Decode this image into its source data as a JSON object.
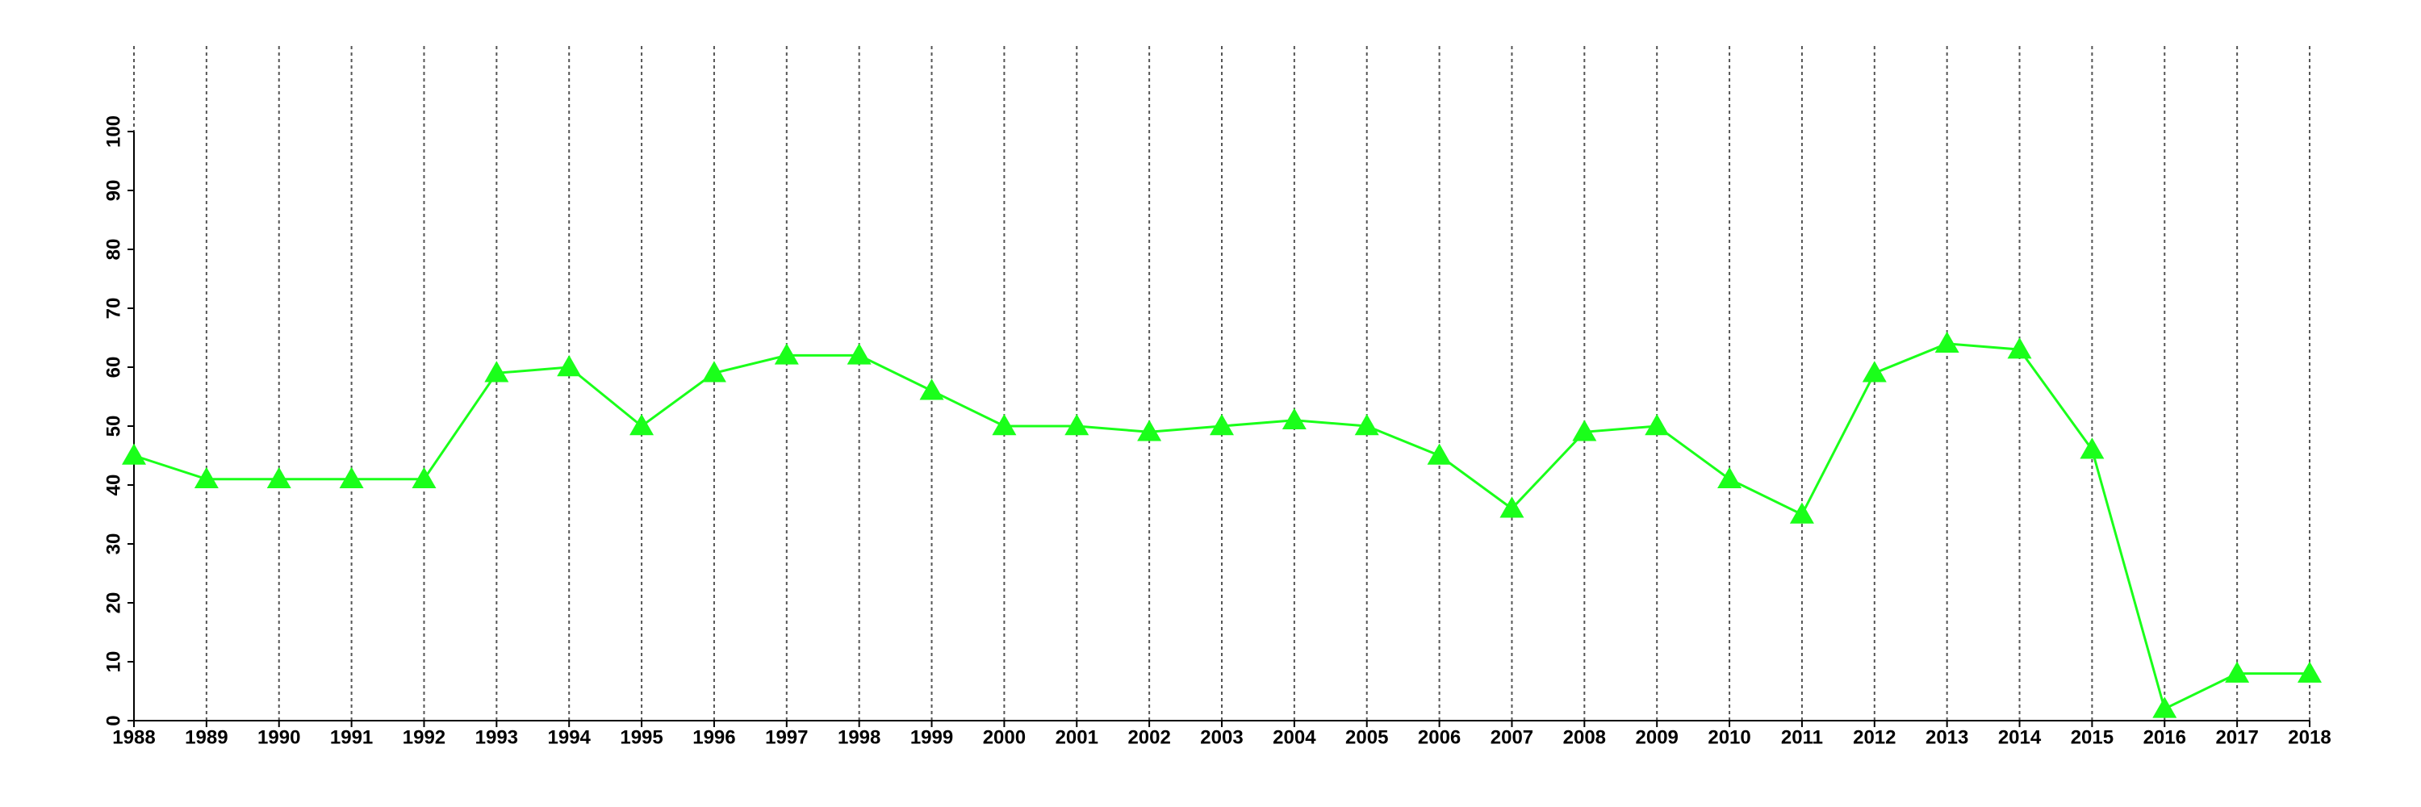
{
  "chart_data": {
    "type": "line",
    "x": [
      1988,
      1989,
      1990,
      1991,
      1992,
      1993,
      1994,
      1995,
      1996,
      1997,
      1998,
      1999,
      2000,
      2001,
      2002,
      2003,
      2004,
      2005,
      2006,
      2007,
      2008,
      2009,
      2010,
      2011,
      2012,
      2013,
      2014,
      2015,
      2016,
      2017,
      2018
    ],
    "values": [
      45,
      41,
      41,
      41,
      41,
      59,
      60,
      50,
      59,
      62,
      62,
      56,
      50,
      50,
      49,
      50,
      51,
      50,
      45,
      36,
      49,
      50,
      41,
      35,
      59,
      64,
      63,
      46,
      2,
      8,
      8
    ],
    "color": "#1aff1a",
    "marker": "triangle",
    "xlim": [
      1988,
      2018
    ],
    "xticks": [
      1988,
      1989,
      1990,
      1991,
      1992,
      1993,
      1994,
      1995,
      1996,
      1997,
      1998,
      1999,
      2000,
      2001,
      2002,
      2003,
      2004,
      2005,
      2006,
      2007,
      2008,
      2009,
      2010,
      2011,
      2012,
      2013,
      2014,
      2015,
      2016,
      2017,
      2018
    ],
    "ylim": [
      0,
      100
    ],
    "yticks": [
      0,
      10,
      20,
      30,
      40,
      50,
      60,
      70,
      80,
      90,
      100
    ],
    "grid": "x"
  }
}
